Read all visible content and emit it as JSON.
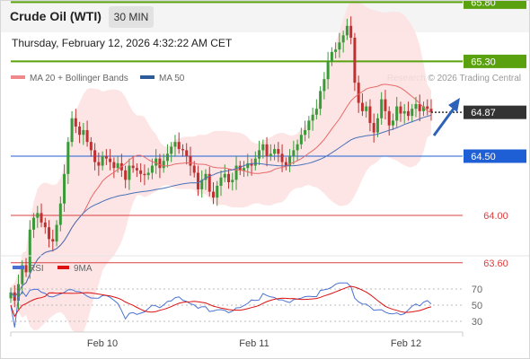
{
  "header": {
    "title": "Crude Oil (WTI)",
    "timeframe": "30 MIN",
    "datetime": "Thursday, February 12, 2026 4:32:22 AM CET"
  },
  "chart_data": [
    {
      "type": "line",
      "subtype": "candlestick",
      "legend": [
        {
          "name": "MA 20 + Bollinger Bands",
          "color": "#f08a8a"
        },
        {
          "name": "MA 50",
          "color": "#2e5c9a"
        }
      ],
      "credit": "Research © 2026 Trading Central",
      "x_ticks": [
        "Feb 10",
        "Feb 11",
        "Feb 12"
      ],
      "levels": [
        {
          "value": 65.8,
          "label": "65.80",
          "kind": "resistance",
          "color": "#5aa10f"
        },
        {
          "value": 65.3,
          "label": "65.30",
          "kind": "resistance",
          "color": "#5aa10f"
        },
        {
          "value": 64.87,
          "label": "64.87",
          "kind": "last",
          "color": "#333333"
        },
        {
          "value": 64.5,
          "label": "64.50",
          "kind": "pivot",
          "color": "#1f5fd6"
        },
        {
          "value": 64.0,
          "label": "64.00",
          "kind": "support",
          "color": "#d94040"
        },
        {
          "value": 63.6,
          "label": "63.60",
          "kind": "support",
          "color": "#d94040"
        }
      ],
      "colors": {
        "up": "#3a9a3a",
        "down": "#c03030",
        "band": "#fde0e0",
        "ma20": "#e86a6a",
        "ma50": "#4a72b8",
        "arrow": "#2e62b8"
      },
      "close_series": [
        63.35,
        63.28,
        63.42,
        63.58,
        63.52,
        63.88,
        63.98,
        64.02,
        63.94,
        63.9,
        63.8,
        63.78,
        63.92,
        64.1,
        64.35,
        64.62,
        64.82,
        64.75,
        64.68,
        64.72,
        64.62,
        64.55,
        64.45,
        64.42,
        64.5,
        64.48,
        64.45,
        64.4,
        64.44,
        64.38,
        64.3,
        64.42,
        64.4,
        64.38,
        64.35,
        64.34,
        64.36,
        64.42,
        64.48,
        64.4,
        64.46,
        64.52,
        64.58,
        64.62,
        64.56,
        64.55,
        64.5,
        64.42,
        64.36,
        64.22,
        64.3,
        64.35,
        64.2,
        64.15,
        64.25,
        64.32,
        64.35,
        64.28,
        64.3,
        64.42,
        64.38,
        64.4,
        64.44,
        64.42,
        64.48,
        64.55,
        64.6,
        64.5,
        64.52,
        64.56,
        64.52,
        64.45,
        64.42,
        64.5,
        64.55,
        64.6,
        64.68,
        64.72,
        64.8,
        64.85,
        64.9,
        65.05,
        65.15,
        65.3,
        65.38,
        65.4,
        65.46,
        65.52,
        65.6,
        65.5,
        65.12,
        64.95,
        64.88,
        64.92,
        64.78,
        64.7,
        64.82,
        64.98,
        64.88,
        64.76,
        64.8,
        64.92,
        64.86,
        64.88,
        64.84,
        64.9,
        64.94,
        64.88,
        64.92,
        64.9,
        64.87
      ]
    },
    {
      "type": "line",
      "legend": [
        {
          "name": "RSI",
          "color": "#4a72d0"
        },
        {
          "name": "9MA",
          "color": "#dd1111"
        }
      ],
      "y_ticks": [
        70,
        50,
        30
      ],
      "ylim": [
        20,
        80
      ]
    }
  ]
}
